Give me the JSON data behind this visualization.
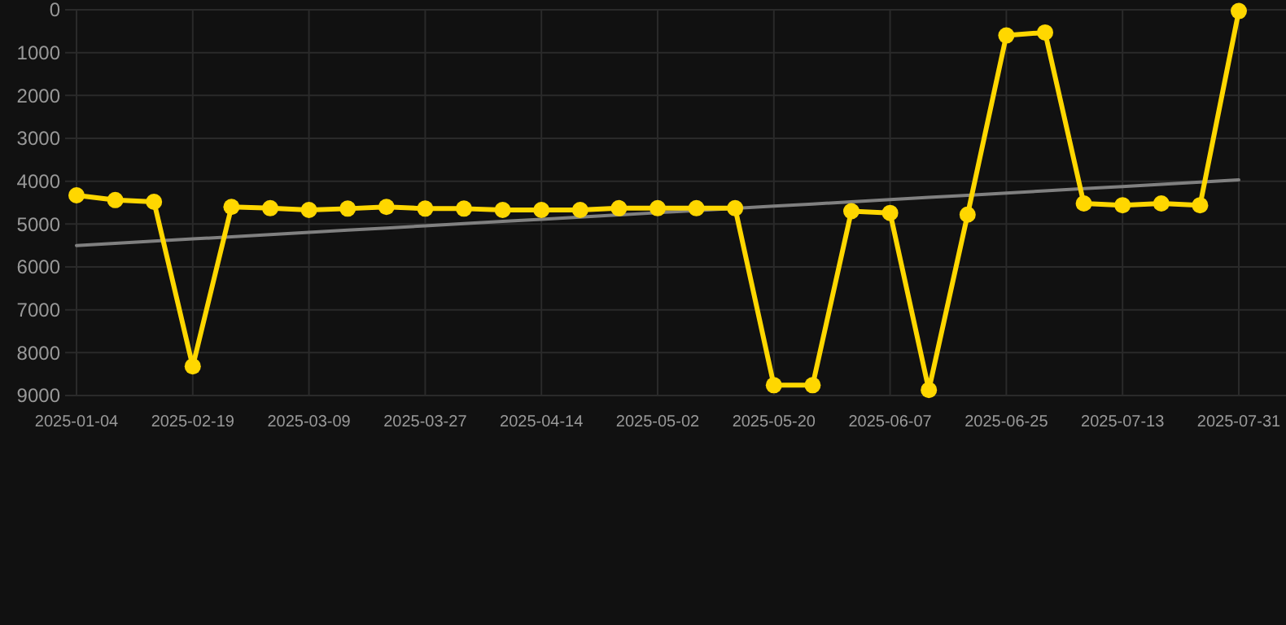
{
  "chart_data": {
    "type": "line",
    "categories": [
      "2025-01-04",
      null,
      null,
      "2025-02-19",
      null,
      null,
      "2025-03-09",
      null,
      null,
      "2025-03-27",
      null,
      null,
      "2025-04-14",
      null,
      null,
      "2025-05-02",
      null,
      null,
      "2025-05-20",
      null,
      null,
      "2025-06-07",
      null,
      null,
      "2025-06-25",
      null,
      null,
      "2025-07-13",
      null,
      null,
      "2025-07-31"
    ],
    "series": [
      {
        "color": "#ffd700",
        "marker": "circle",
        "values": [
          4330,
          4440,
          4480,
          8320,
          4600,
          4630,
          4670,
          4640,
          4600,
          4640,
          4640,
          4670,
          4670,
          4670,
          4630,
          4630,
          4630,
          4630,
          8760,
          8760,
          4700,
          4740,
          8870,
          4780,
          600,
          530,
          4520,
          4560,
          4520,
          4560,
          30
        ]
      },
      {
        "type": "line",
        "color": "#808080",
        "marker": "none",
        "values": [
          5500,
          5449,
          5398,
          5347,
          5296,
          5245,
          5194,
          5143,
          5092,
          5041,
          4990,
          4939,
          4888,
          4837,
          4786,
          4735,
          4684,
          4633,
          4582,
          4531,
          4480,
          4429,
          4378,
          4327,
          4276,
          4225,
          4174,
          4123,
          4072,
          4021,
          3970
        ]
      }
    ],
    "ylim": [
      9000,
      0
    ],
    "yticks": [
      0,
      1000,
      2000,
      3000,
      4000,
      5000,
      6000,
      7000,
      8000,
      9000
    ],
    "grid": true
  }
}
